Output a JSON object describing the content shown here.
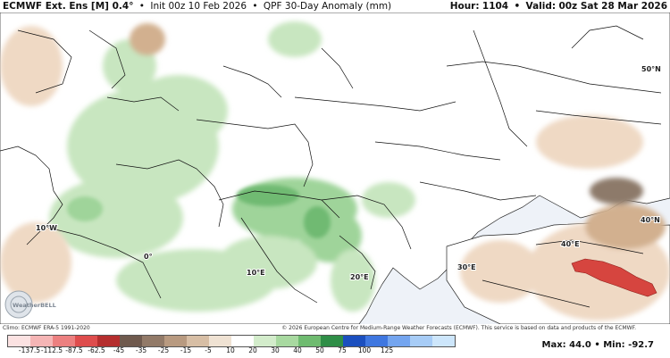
{
  "header": {
    "model": "ECMWF Ext. Ens [M] 0.4°",
    "init": "Init 00z 10 Feb 2026",
    "product": "QPF 30-Day Anomaly (mm)",
    "hour_label": "Hour:",
    "hour_value": "1104",
    "valid_label": "Valid:",
    "valid_value": "00z Sat 28 Mar 2026"
  },
  "map": {
    "lat_labels": [
      "50°N",
      "40°N"
    ],
    "lon_labels": [
      "10°W",
      "0°",
      "10°E",
      "20°E",
      "30°E",
      "40°E"
    ],
    "logo_text": "WeatherBELL",
    "colors": {
      "land_base": "#ffffff",
      "sea": "#eef2f8",
      "wet_light": "#c8e6c0",
      "wet_medium": "#9fd49a",
      "wet_strong": "#6fba72",
      "dry_light": "#efd9c4",
      "dry_medium": "#d2b08f",
      "dry_strong": "#8d7a6b",
      "dry_extreme": "#d6453f",
      "borders": "#111111"
    }
  },
  "footer": {
    "climo": "Climo: ECMWF ERA-5 1991-2020",
    "copyright": "© 2026 European Centre for Medium-Range Weather Forecasts (ECMWF). This service is based on data and products of the ECMWF.",
    "max_label": "Max:",
    "max_value": "44.0",
    "min_label": "Min:",
    "min_value": "-92.7"
  },
  "colorbar": {
    "labels": [
      "-137.5",
      "-112.5",
      "-87.5",
      "-62.5",
      "-45",
      "-35",
      "-25",
      "-15",
      "-5",
      "10",
      "20",
      "30",
      "40",
      "50",
      "75",
      "100",
      "125"
    ],
    "colors": [
      "#fbe2e2",
      "#f5b5b5",
      "#ec8080",
      "#de4d4d",
      "#b52e2e",
      "#6f5a4e",
      "#927a68",
      "#b89a80",
      "#d7bea5",
      "#efe2d3",
      "#ffffff",
      "#d3eccb",
      "#a8d9a0",
      "#6fbb70",
      "#2f8e47",
      "#1b4fbf",
      "#3f77e0",
      "#74a5ef",
      "#a7ccf6",
      "#cde6fb"
    ]
  }
}
